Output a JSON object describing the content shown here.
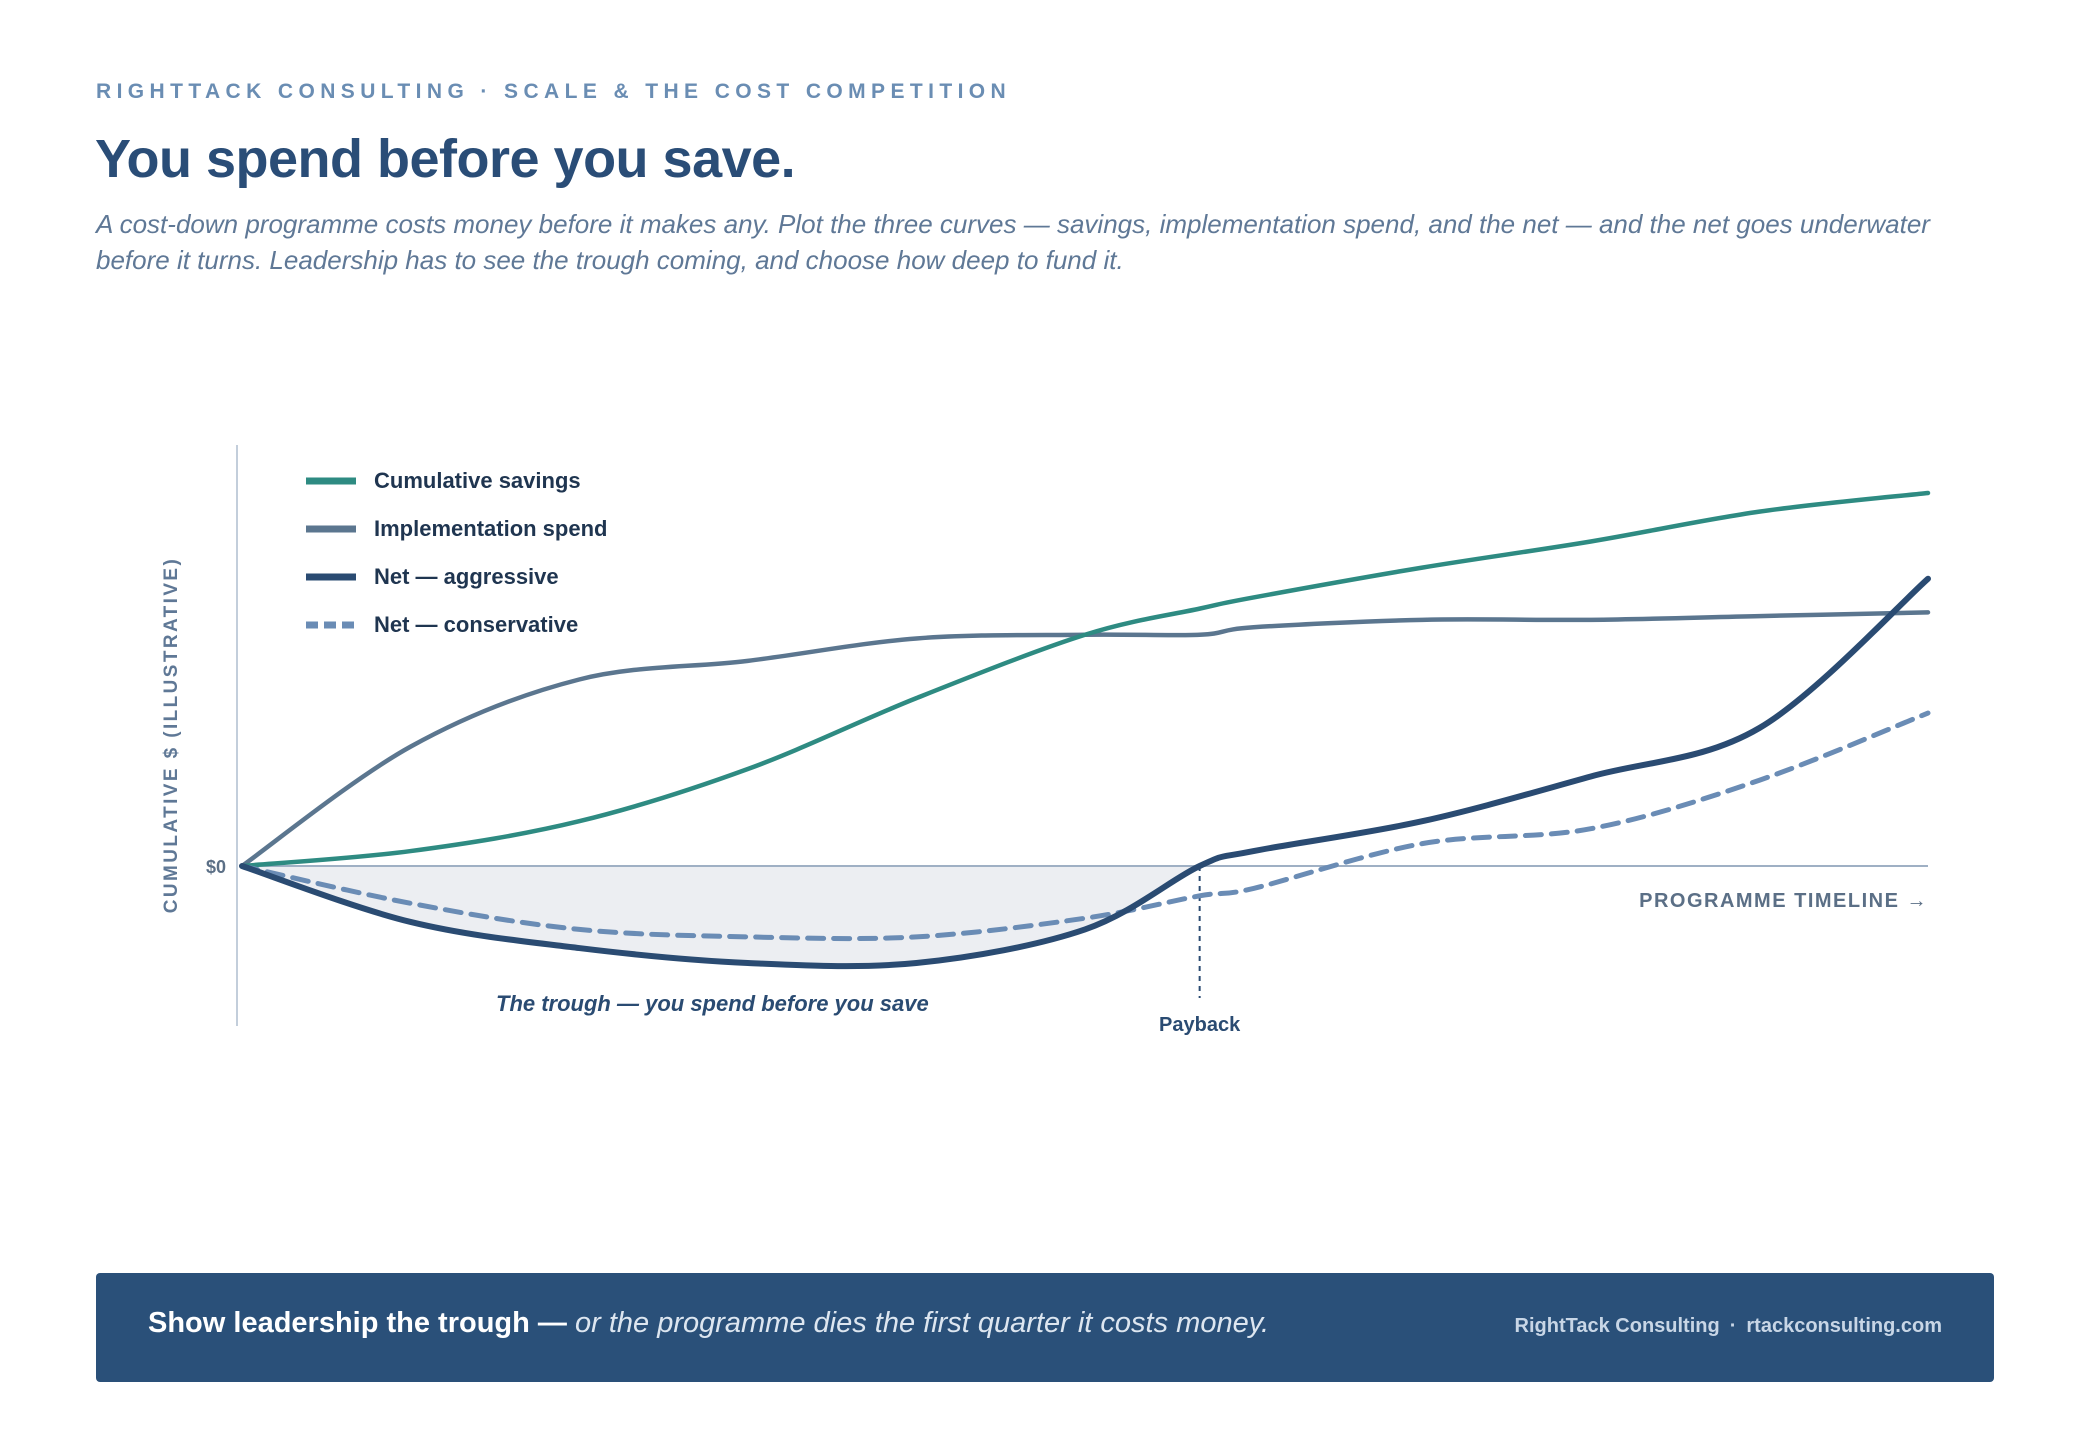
{
  "header": {
    "eyebrow": "RIGHTTACK CONSULTING · SCALE & THE COST COMPETITION",
    "title": "You spend before you save.",
    "subtitle": "A cost-down programme costs money before it makes any. Plot the three curves — savings, implementation spend, and the net — and the net goes underwater before it turns. Leadership has to see the trough coming, and choose how deep to fund it."
  },
  "chart_data": {
    "type": "line",
    "xlabel": "PROGRAMME TIMELINE →",
    "ylabel": "CUMULATIVE $ (ILLUSTRATIVE)",
    "y_tick_labels": [
      "$0"
    ],
    "x": [
      0,
      0.1,
      0.2,
      0.3,
      0.4,
      0.5,
      0.568,
      0.6,
      0.7,
      0.8,
      0.9,
      1.0
    ],
    "xlim": [
      0,
      1
    ],
    "ylim": [
      -0.38,
      1.0
    ],
    "grid": false,
    "legend_position": "top-left",
    "series": [
      {
        "name": "Cumulative savings",
        "style": "solid",
        "color": "#2e8b82",
        "values": [
          0,
          0.04,
          0.12,
          0.26,
          0.45,
          0.62,
          0.69,
          0.72,
          0.8,
          0.87,
          0.95,
          1.0
        ]
      },
      {
        "name": "Implementation spend",
        "style": "solid",
        "color": "#5b768f",
        "values": [
          0,
          0.32,
          0.5,
          0.55,
          0.61,
          0.62,
          0.62,
          0.64,
          0.66,
          0.66,
          0.67,
          0.68
        ]
      },
      {
        "name": "Net — aggressive",
        "style": "solid",
        "color": "#2a4b72",
        "values": [
          0,
          -0.15,
          -0.22,
          -0.26,
          -0.26,
          -0.17,
          0,
          0.04,
          0.12,
          0.24,
          0.37,
          0.77
        ]
      },
      {
        "name": "Net — conservative",
        "style": "dashed",
        "color": "#6a8cb5",
        "values": [
          0,
          -0.1,
          -0.17,
          -0.19,
          -0.19,
          -0.14,
          -0.08,
          -0.06,
          0.06,
          0.1,
          0.23,
          0.41
        ]
      }
    ],
    "annotations": [
      {
        "text": "The trough — you spend before you save"
      },
      {
        "text": "Payback",
        "x": 0.568
      }
    ]
  },
  "footer": {
    "message_strong": "Show leadership the trough —",
    "message_rest": " or the programme dies the first quarter it costs money.",
    "credit_name": "RightTack Consulting",
    "credit_sep": "·",
    "credit_site": "rtackconsulting.com"
  },
  "colors": {
    "navy": "#2a4d77",
    "teal": "#2e8b82",
    "slate": "#5b768f",
    "dash_blue": "#6a8cb5",
    "trough_fill": "#eceef2",
    "footer_bg": "#2a5079"
  }
}
